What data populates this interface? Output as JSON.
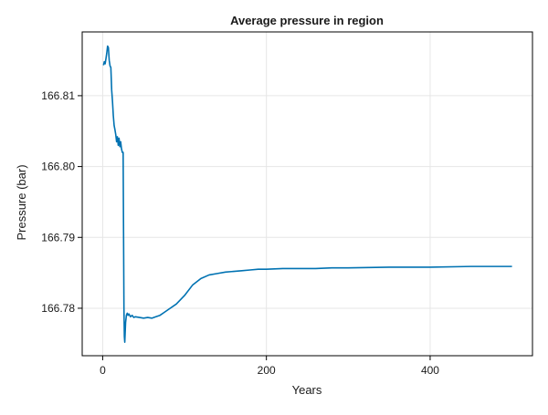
{
  "chart_data": {
    "type": "line",
    "title": "Average pressure in region",
    "xlabel": "Years",
    "ylabel": "Pressure (bar)",
    "xlim": [
      -25,
      525
    ],
    "ylim": [
      166.7733,
      166.819
    ],
    "xticks": [
      {
        "value": 0,
        "label": "0"
      },
      {
        "value": 200,
        "label": "200"
      },
      {
        "value": 400,
        "label": "400"
      }
    ],
    "yticks": [
      {
        "value": 166.78,
        "label": "166.78"
      },
      {
        "value": 166.79,
        "label": "166.79"
      },
      {
        "value": 166.8,
        "label": "166.80"
      },
      {
        "value": 166.81,
        "label": "166.81"
      }
    ],
    "grid": true,
    "legend": "none",
    "series": [
      {
        "color": "#0072b2",
        "x": [
          1,
          2,
          3,
          4,
          5,
          6,
          7,
          8,
          9,
          10,
          11,
          12,
          13,
          14,
          15,
          16,
          17,
          18,
          19,
          20,
          21,
          22,
          23,
          24,
          25,
          26,
          26.5,
          27,
          28,
          29,
          30,
          31,
          32,
          34,
          36,
          38,
          40,
          45,
          50,
          55,
          60,
          65,
          70,
          75,
          80,
          90,
          100,
          110,
          120,
          130,
          140,
          150,
          160,
          170,
          180,
          190,
          200,
          220,
          240,
          260,
          280,
          300,
          350,
          400,
          450,
          500
        ],
        "y": [
          166.8143,
          166.8148,
          166.8145,
          166.8152,
          166.816,
          166.817,
          166.8168,
          166.815,
          166.8142,
          166.814,
          166.8108,
          166.8092,
          166.8072,
          166.8058,
          166.8052,
          166.8045,
          166.8035,
          166.8042,
          166.803,
          166.804,
          166.8028,
          166.8035,
          166.8025,
          166.802,
          166.802,
          166.78,
          166.776,
          166.7752,
          166.778,
          166.779,
          166.7793,
          166.779,
          166.7792,
          166.7788,
          166.779,
          166.7787,
          166.7788,
          166.7787,
          166.7786,
          166.7787,
          166.7786,
          166.7788,
          166.779,
          166.7794,
          166.7798,
          166.7806,
          166.7818,
          166.7833,
          166.7842,
          166.7847,
          166.7849,
          166.7851,
          166.7852,
          166.7853,
          166.7854,
          166.7855,
          166.7855,
          166.7856,
          166.7856,
          166.7856,
          166.7857,
          166.7857,
          166.7858,
          166.7858,
          166.7859,
          166.7859
        ]
      }
    ]
  }
}
